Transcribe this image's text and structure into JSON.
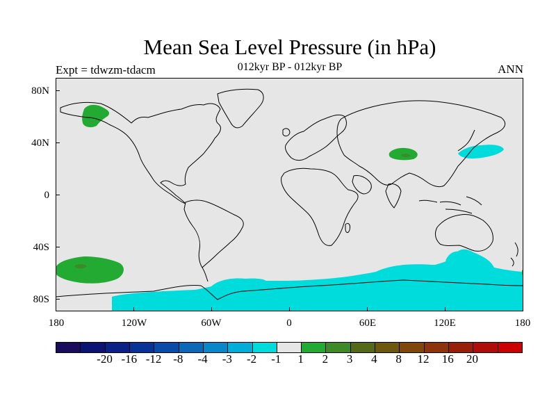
{
  "header": {
    "title": "Mean Sea Level Pressure (in hPa)",
    "subtitle": "012kyr BP - 012kyr BP",
    "experiment": "Expt = tdwzm-tdacm",
    "period": "ANN"
  },
  "map": {
    "lat_labels": [
      "80N",
      "40N",
      "0",
      "40S",
      "80S"
    ],
    "lon_labels": [
      "180",
      "120W",
      "60W",
      "0",
      "60E",
      "120E",
      "180"
    ],
    "colors": {
      "background": "#e6e6e6",
      "land_outline": "#000000",
      "neg_1_to_2": "#00dcdc",
      "pos_1_to_2": "#22aa33",
      "pos_2_to_3": "#3c8a28"
    },
    "anomaly_regions": [
      {
        "name": "Alaska / Bering",
        "value_range": "1 to 2"
      },
      {
        "name": "Tibetan Plateau",
        "value_range": "1 to 3"
      },
      {
        "name": "NW Pacific off Japan",
        "value_range": "-2 to -1"
      },
      {
        "name": "South Pacific",
        "value_range": "1 to 3"
      },
      {
        "name": "Southern Ocean / Antarctica",
        "value_range": "-2 to -1"
      }
    ]
  },
  "colorbar": {
    "colors": [
      "#1a0b5c",
      "#0c1473",
      "#0a2288",
      "#073298",
      "#0a4aa8",
      "#0e68b8",
      "#0888c8",
      "#00aed8",
      "#00dcdc",
      "#e6e6e6",
      "#22aa33",
      "#3c8a28",
      "#556a18",
      "#6e5810",
      "#80460c",
      "#8e340c",
      "#992008",
      "#b00c08",
      "#cc0000"
    ],
    "labels": [
      "-20",
      "-16",
      "-12",
      "-8",
      "-4",
      "-3",
      "-2",
      "-1",
      "1",
      "2",
      "3",
      "4",
      "8",
      "12",
      "16",
      "20"
    ]
  }
}
